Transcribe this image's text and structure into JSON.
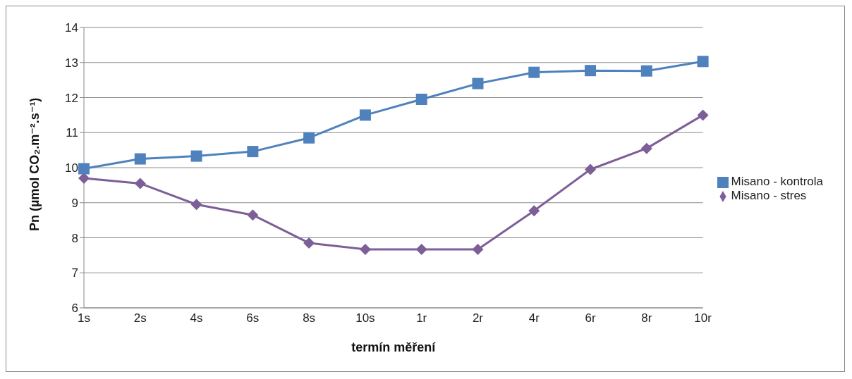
{
  "chart_data": {
    "type": "line",
    "xlabel": "termín měření",
    "ylabel": "Pn (µmol CO₂.m⁻².s⁻¹)",
    "categories": [
      "1s",
      "2s",
      "4s",
      "6s",
      "8s",
      "10s",
      "1r",
      "2r",
      "4r",
      "6r",
      "8r",
      "10r"
    ],
    "series": [
      {
        "name": "Misano - stres",
        "color": "#7d5f98",
        "marker": "diamond",
        "values": [
          9.7,
          9.55,
          8.95,
          8.65,
          7.85,
          7.67,
          7.67,
          7.67,
          8.77,
          9.95,
          10.55,
          11.5
        ]
      },
      {
        "name": "Misano - kontrola",
        "color": "#4f81bd",
        "marker": "square",
        "values": [
          9.97,
          10.25,
          10.33,
          10.46,
          10.85,
          11.5,
          11.95,
          12.4,
          12.72,
          12.77,
          12.76,
          13.03
        ]
      }
    ],
    "ylim": [
      6,
      14
    ],
    "yticks": [
      6,
      7,
      8,
      9,
      10,
      11,
      12,
      13,
      14
    ],
    "grid": "y",
    "legend": "right",
    "line_style": "solid"
  }
}
